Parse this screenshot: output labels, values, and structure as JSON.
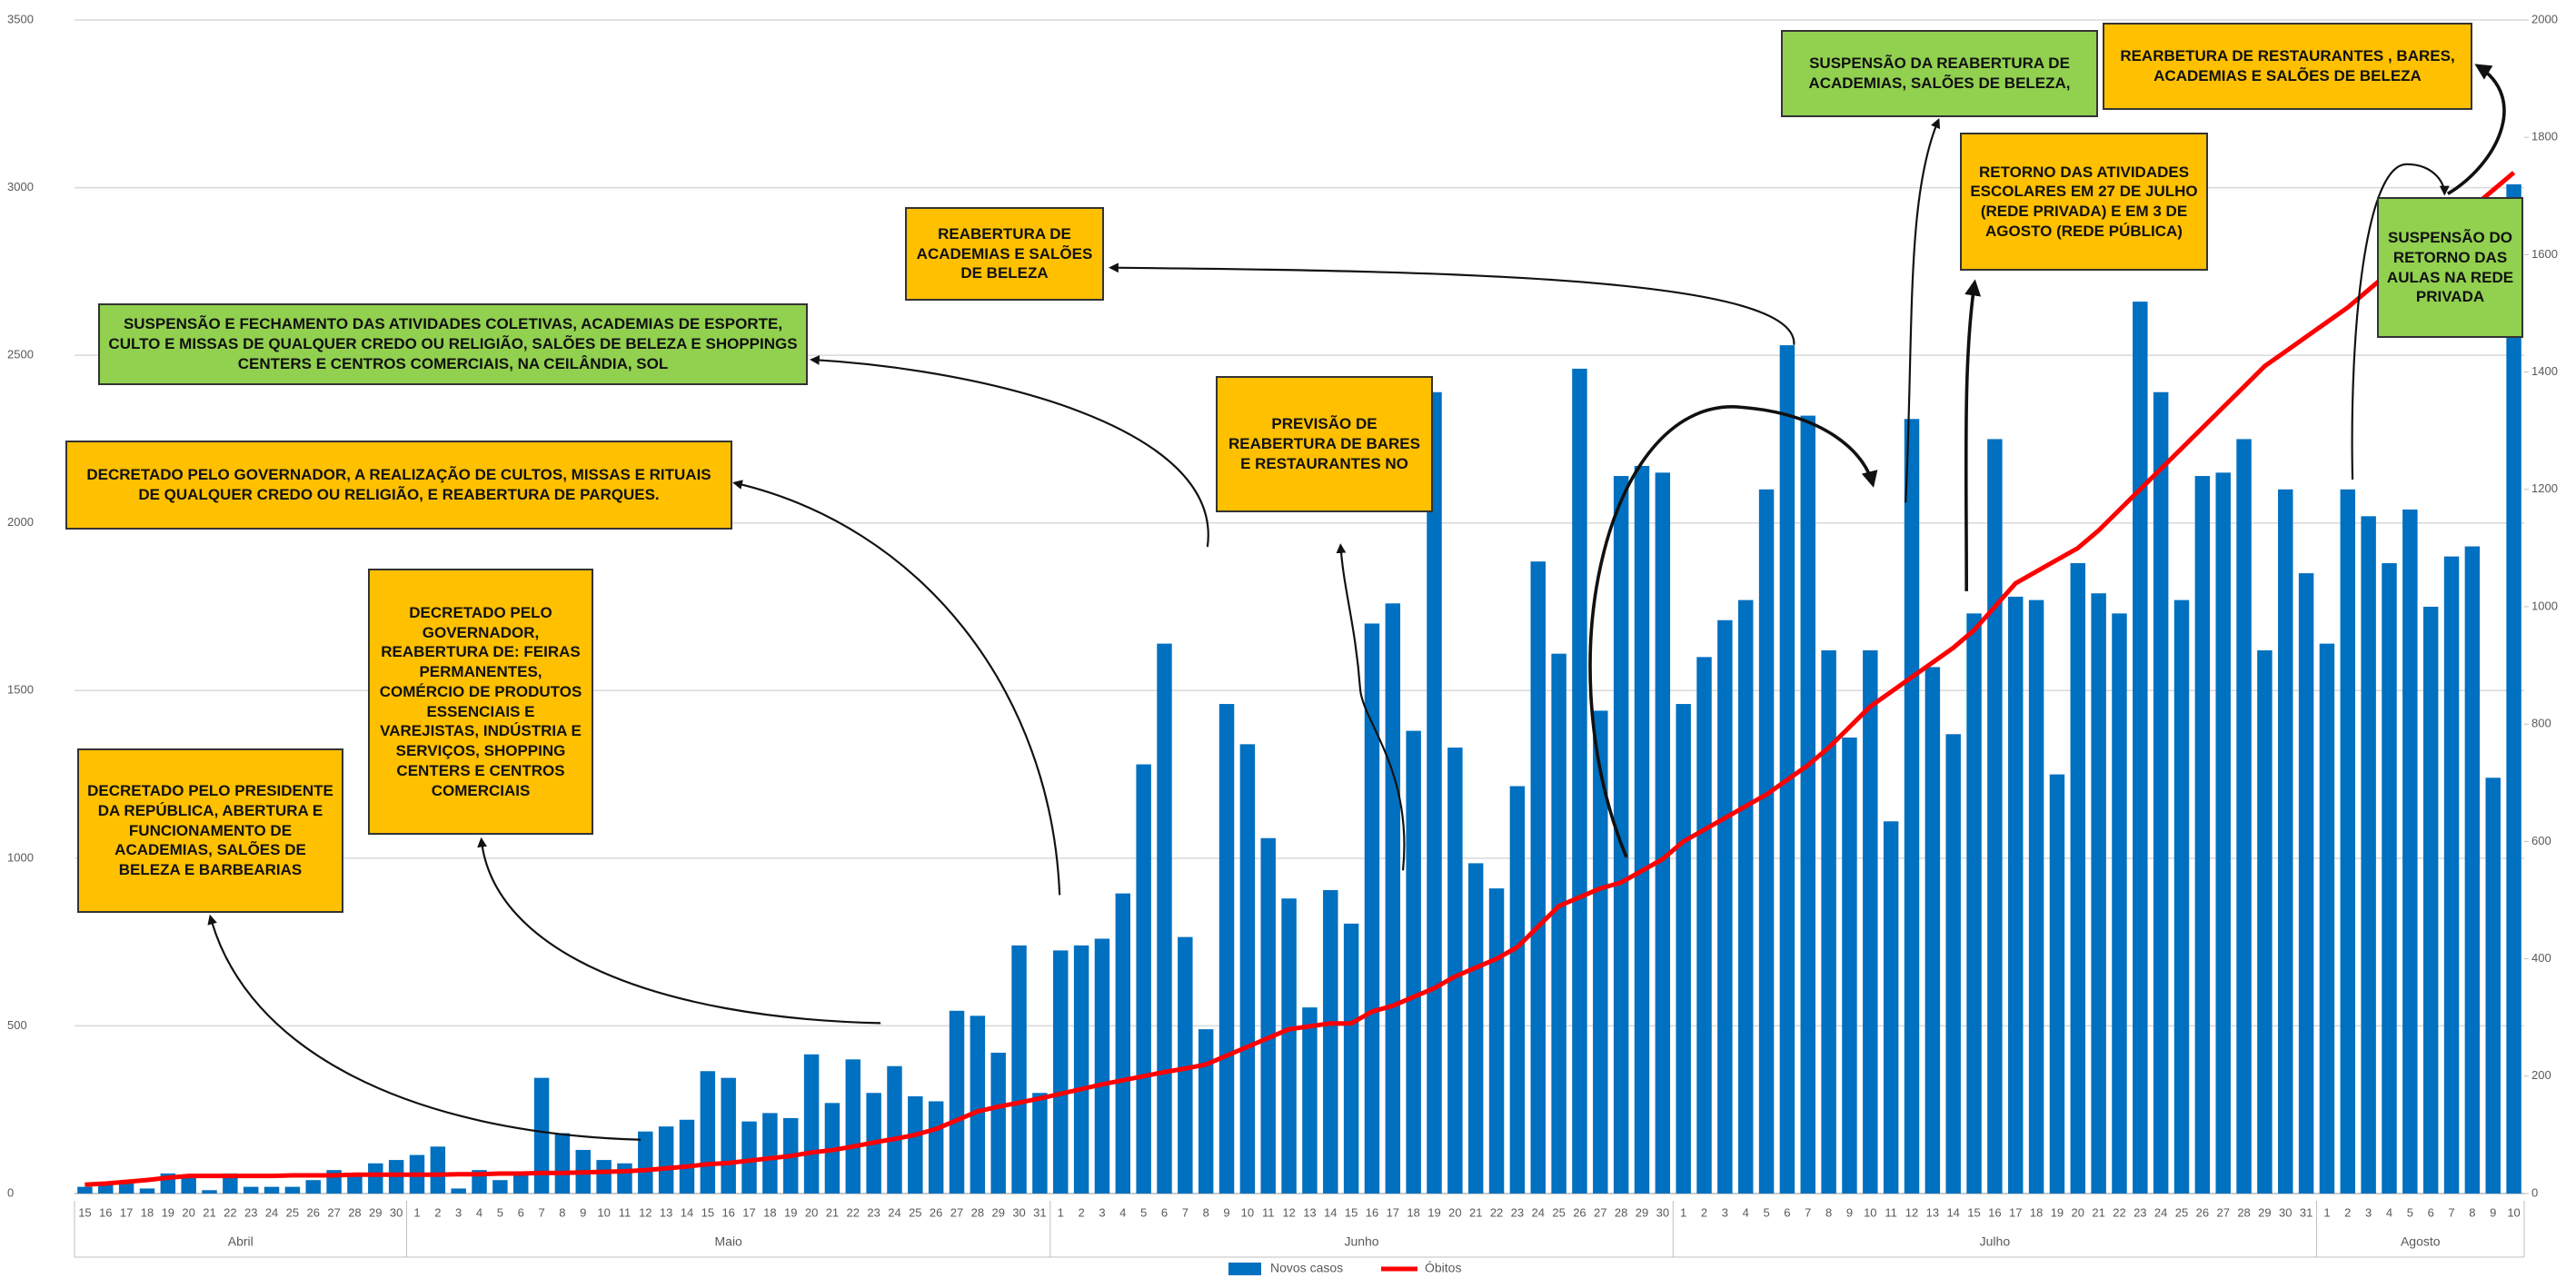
{
  "chart_data": {
    "type": "bar",
    "categories": [
      "15",
      "16",
      "17",
      "18",
      "19",
      "20",
      "21",
      "22",
      "23",
      "24",
      "25",
      "26",
      "27",
      "28",
      "29",
      "30",
      "1",
      "2",
      "3",
      "4",
      "5",
      "6",
      "7",
      "8",
      "9",
      "10",
      "11",
      "12",
      "13",
      "14",
      "15",
      "16",
      "17",
      "18",
      "19",
      "20",
      "21",
      "22",
      "23",
      "24",
      "25",
      "26",
      "27",
      "28",
      "29",
      "30",
      "31",
      "1",
      "2",
      "3",
      "4",
      "5",
      "6",
      "7",
      "8",
      "9",
      "10",
      "11",
      "12",
      "13",
      "14",
      "15",
      "16",
      "17",
      "18",
      "19",
      "20",
      "21",
      "22",
      "23",
      "24",
      "25",
      "26",
      "27",
      "28",
      "29",
      "30",
      "1",
      "2",
      "3",
      "4",
      "5",
      "6",
      "7",
      "8",
      "9",
      "10",
      "11",
      "12",
      "13",
      "14",
      "15",
      "16",
      "17",
      "18",
      "19",
      "20",
      "21",
      "22",
      "23",
      "24",
      "25",
      "26",
      "27",
      "28",
      "29",
      "30",
      "31",
      "1",
      "2",
      "3",
      "4",
      "5",
      "6",
      "7",
      "8",
      "9",
      "10"
    ],
    "months": [
      "Abril",
      "Maio",
      "Junho",
      "Julho",
      "Agosto"
    ],
    "series": [
      {
        "name": "Novos casos",
        "color": "#0070c0",
        "values": [
          20,
          30,
          30,
          15,
          60,
          55,
          10,
          60,
          20,
          20,
          20,
          40,
          70,
          60,
          90,
          100,
          115,
          140,
          15,
          70,
          40,
          55,
          345,
          180,
          130,
          100,
          90,
          185,
          200,
          220,
          365,
          345,
          215,
          240,
          225,
          415,
          270,
          400,
          300,
          380,
          290,
          275,
          545,
          530,
          420,
          740,
          300,
          725,
          740,
          760,
          895,
          1280,
          1640,
          765,
          490,
          1460,
          1340,
          1060,
          880,
          555,
          905,
          805,
          1700,
          1760,
          1380,
          2390,
          1330,
          985,
          910,
          1215,
          1885,
          1610,
          2460,
          1440,
          2140,
          2170,
          2150,
          1460,
          1600,
          1710,
          1770,
          2100,
          2530,
          2320,
          1620,
          1360,
          1620,
          1110,
          2310,
          1570,
          1370,
          1730,
          2250,
          1780,
          1770,
          1250,
          1880,
          1790,
          1730,
          2660,
          2390,
          1770,
          2140,
          2150,
          2250,
          1620,
          2100,
          1850,
          1640,
          2100,
          2020,
          1880,
          2040,
          1750,
          1900,
          1930,
          1240,
          3010
        ]
      },
      {
        "name": "Óbitos",
        "color": "#ff0000",
        "type": "line",
        "axis": "y2",
        "values": [
          15,
          17,
          20,
          23,
          27,
          30,
          30,
          30,
          30,
          30,
          31,
          31,
          31,
          32,
          32,
          32,
          32,
          32,
          33,
          33,
          34,
          34,
          35,
          35,
          36,
          37,
          38,
          40,
          43,
          46,
          50,
          52,
          56,
          60,
          64,
          70,
          74,
          80,
          87,
          93,
          100,
          110,
          125,
          140,
          148,
          155,
          162,
          170,
          178,
          186,
          193,
          200,
          207,
          213,
          220,
          235,
          250,
          265,
          280,
          285,
          290,
          290,
          310,
          320,
          335,
          350,
          370,
          385,
          400,
          420,
          455,
          490,
          505,
          520,
          530,
          550,
          570,
          600,
          620,
          640,
          660,
          680,
          705,
          730,
          760,
          795,
          830,
          855,
          880,
          905,
          930,
          960,
          1000,
          1040,
          1060,
          1080,
          1100,
          1130,
          1165,
          1200,
          1235,
          1270,
          1305,
          1340,
          1375,
          1410,
          1435,
          1460,
          1485,
          1510,
          1540,
          1570,
          1595,
          1620,
          1650,
          1680,
          1710,
          1740
        ]
      }
    ],
    "ylim": [
      0,
      3500
    ],
    "yticks": [
      0,
      500,
      1000,
      1500,
      2000,
      2500,
      3000,
      3500
    ],
    "y2lim": [
      0,
      2000
    ],
    "y2ticks": [
      0,
      200,
      400,
      600,
      800,
      1000,
      1200,
      1400,
      1600,
      1800,
      2000
    ],
    "grid": true,
    "legend": "bottom",
    "annotations": [
      {
        "text": "DECRETADO PELO PRESIDENTE DA REPÚBLICA, ABERTURA E FUNCIONAMENTO DE ACADEMIAS, SALÕES DE BELEZA E BARBEARIAS",
        "color": "#ffc000"
      },
      {
        "text": "DECRETADO PELO GOVERNADOR, REABERTURA DE: FEIRAS PERMANENTES, COMÉRCIO DE PRODUTOS ESSENCIAIS E VAREJISTAS, INDÚSTRIA E SERVIÇOS, SHOPPING CENTERS E CENTROS COMERCIAIS",
        "color": "#ffc000"
      },
      {
        "text": "DECRETADO PELO GOVERNADOR,  A REALIZAÇÃO DE CULTOS, MISSAS E RITUAIS DE QUALQUER CREDO OU RELIGIÃO, E REABERTURA DE PARQUES.",
        "color": "#ffc000"
      },
      {
        "text": "SUSPENSÃO E FECHAMENTO DAS ATIVIDADES COLETIVAS, ACADEMIAS DE ESPORTE, CULTO E MISSAS DE QUALQUER CREDO OU RELIGIÃO, SALÕES DE BELEZA E SHOPPINGS CENTERS E CENTROS COMERCIAIS, NA CEILÂNDIA, SOL",
        "color": "#92d050"
      },
      {
        "text": "REABERTURA DE ACADEMIAS E SALÕES DE BELEZA",
        "color": "#ffc000"
      },
      {
        "text": "PREVISÃO DE REABERTURA DE BARES E RESTAURANTES NO",
        "color": "#ffc000"
      },
      {
        "text": "SUSPENSÃO DA REABERTURA DE ACADEMIAS, SALÕES DE BELEZA,",
        "color": "#92d050"
      },
      {
        "text": "RETORNO DAS ATIVIDADES ESCOLARES EM 27 DE JULHO (REDE PRIVADA) E EM 3 DE AGOSTO (REDE PÚBLICA)",
        "color": "#ffc000"
      },
      {
        "text": "REARBETURA DE RESTAURANTES , BARES, ACADEMIAS E SALÕES DE BELEZA",
        "color": "#ffc000"
      },
      {
        "text": "SUSPENSÃO DO RETORNO DAS AULAS NA REDE PRIVADA",
        "color": "#92d050"
      }
    ]
  }
}
